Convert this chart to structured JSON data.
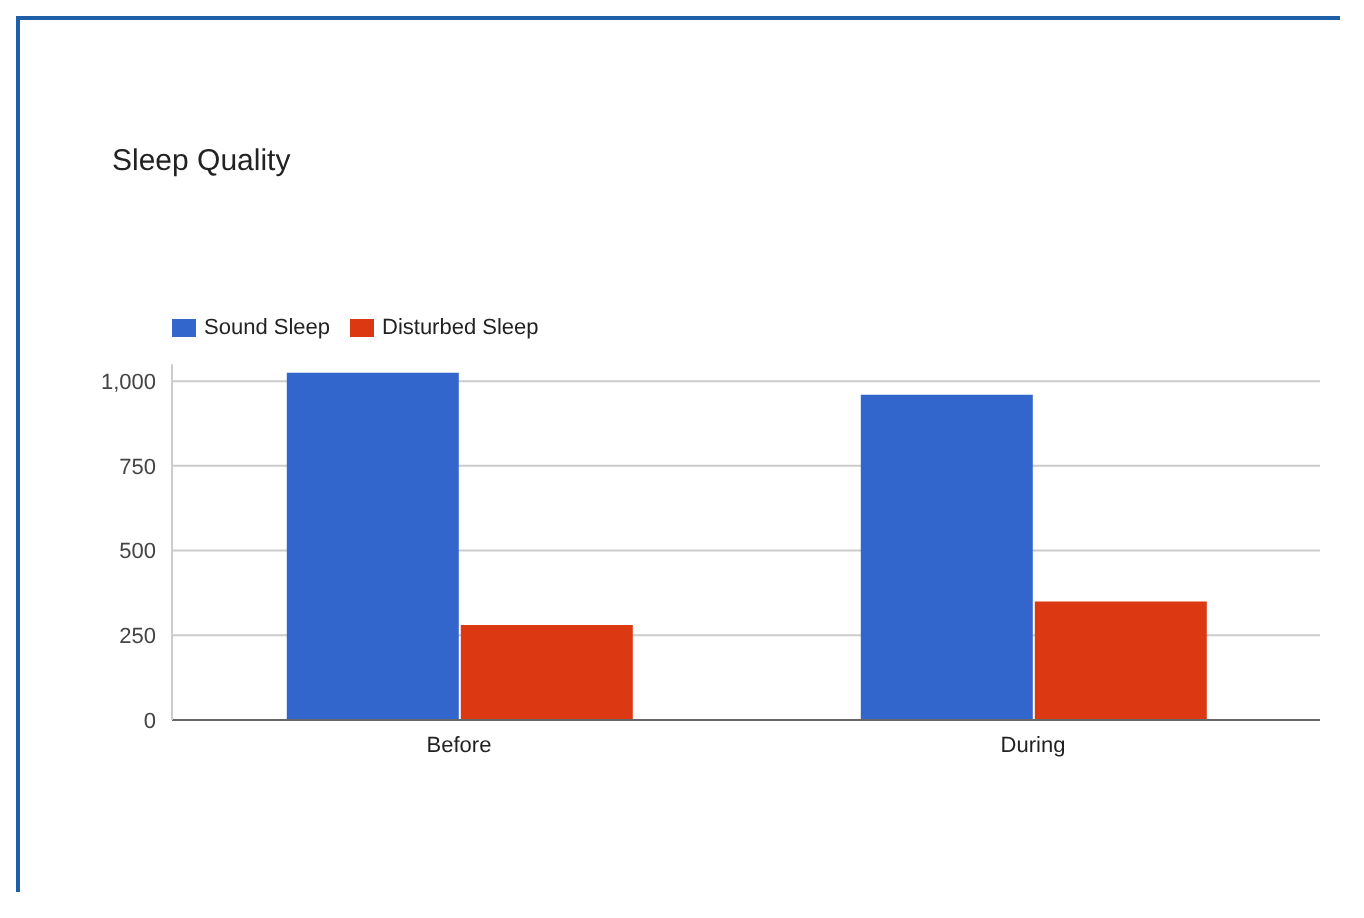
{
  "chart_data": {
    "type": "bar",
    "title": "Sleep Quality",
    "categories": [
      "Before",
      "During"
    ],
    "series": [
      {
        "name": "Sound Sleep",
        "color": "#3366cc",
        "values": [
          1025,
          960
        ]
      },
      {
        "name": "Disturbed Sleep",
        "color": "#dc3912",
        "values": [
          280,
          350
        ]
      }
    ],
    "ylim": [
      0,
      1050
    ],
    "yticks": [
      0,
      {
        "value": 250,
        "label": "250"
      },
      {
        "value": 500,
        "label": "500"
      },
      {
        "value": 750,
        "label": "750"
      },
      {
        "value": 1000,
        "label": "1,000"
      }
    ],
    "grid": "y",
    "legend": "top left"
  }
}
